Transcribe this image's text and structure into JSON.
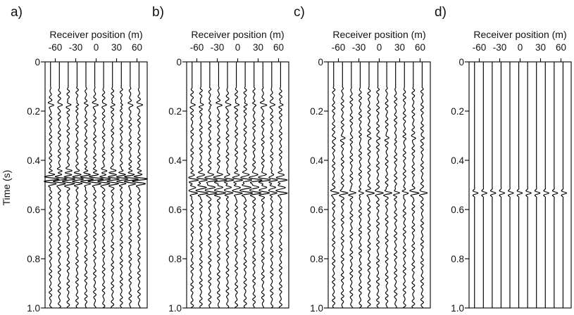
{
  "y_axis_label": "Time (s)",
  "chart_data": [
    {
      "type": "seismic-wiggle",
      "panel_label": "a)",
      "xlabel": "Receiver position (m)",
      "ylabel": "Time (s)",
      "x_ticks": [
        -60,
        -30,
        0,
        30,
        60
      ],
      "x_tick_labels": [
        "-60",
        "-30",
        "0",
        "30",
        "60"
      ],
      "y_ticks": [
        0,
        0.2,
        0.4,
        0.6,
        0.8,
        1.0
      ],
      "y_tick_labels": [
        "0",
        "0.2",
        "0.4",
        "0.6",
        "0.8",
        "1.0"
      ],
      "xlim": [
        -75,
        75
      ],
      "ylim": [
        0,
        1.0
      ],
      "y_inverted": true,
      "receiver_positions": [
        -67,
        -54,
        -41,
        -28,
        -15,
        -2,
        11,
        24,
        37,
        50,
        63
      ],
      "noise_onset_time": 0.1,
      "noise_amplitude": 0.25,
      "events": [
        {
          "time": 0.175,
          "amplitude": 0.55
        },
        {
          "time": 0.443,
          "amplitude": 0.6
        },
        {
          "time": 0.458,
          "amplitude": 0.8
        },
        {
          "time": 0.476,
          "amplitude": 1.55
        },
        {
          "time": 0.495,
          "amplitude": 1.2
        }
      ]
    },
    {
      "type": "seismic-wiggle",
      "panel_label": "b)",
      "xlabel": "Receiver position (m)",
      "ylabel": "",
      "x_ticks": [
        -60,
        -30,
        0,
        30,
        60
      ],
      "x_tick_labels": [
        "-60",
        "-30",
        "0",
        "30",
        "60"
      ],
      "y_ticks": [
        0,
        0.2,
        0.4,
        0.6,
        0.8,
        1.0
      ],
      "y_tick_labels": [
        "0",
        "0.2",
        "0.4",
        "0.6",
        "0.8",
        "1.0"
      ],
      "xlim": [
        -75,
        75
      ],
      "ylim": [
        0,
        1.0
      ],
      "y_inverted": true,
      "receiver_positions": [
        -67,
        -54,
        -41,
        -28,
        -15,
        -2,
        11,
        24,
        37,
        50,
        63
      ],
      "noise_onset_time": 0.1,
      "noise_amplitude": 0.26,
      "events": [
        {
          "time": 0.175,
          "amplitude": 0.6
        },
        {
          "time": 0.458,
          "amplitude": 0.7
        },
        {
          "time": 0.48,
          "amplitude": 1.55
        },
        {
          "time": 0.51,
          "amplitude": 1.0
        },
        {
          "time": 0.533,
          "amplitude": 1.45
        }
      ]
    },
    {
      "type": "seismic-wiggle",
      "panel_label": "c)",
      "xlabel": "Receiver position (m)",
      "ylabel": "",
      "x_ticks": [
        -60,
        -30,
        0,
        30,
        60
      ],
      "x_tick_labels": [
        "-60",
        "-30",
        "0",
        "30",
        "60"
      ],
      "y_ticks": [
        0,
        0.2,
        0.4,
        0.6,
        0.8,
        1.0
      ],
      "y_tick_labels": [
        "0",
        "0.2",
        "0.4",
        "0.6",
        "0.8",
        "1.0"
      ],
      "xlim": [
        -75,
        75
      ],
      "ylim": [
        0,
        1.0
      ],
      "y_inverted": true,
      "receiver_positions": [
        -67,
        -54,
        -41,
        -28,
        -15,
        -2,
        11,
        24,
        37,
        50,
        63
      ],
      "noise_onset_time": 0.1,
      "noise_amplitude": 0.26,
      "events": [
        {
          "time": 0.31,
          "amplitude": 0.35
        },
        {
          "time": 0.533,
          "amplitude": 1.05
        }
      ]
    },
    {
      "type": "seismic-wiggle",
      "panel_label": "d)",
      "xlabel": "Receiver position (m)",
      "ylabel": "",
      "x_ticks": [
        -60,
        -30,
        0,
        30,
        60
      ],
      "x_tick_labels": [
        "-60",
        "-30",
        "0",
        "30",
        "60"
      ],
      "y_ticks": [
        0,
        0.2,
        0.4,
        0.6,
        0.8,
        1.0
      ],
      "y_tick_labels": [
        "0",
        "0.2",
        "0.4",
        "0.6",
        "0.8",
        "1.0"
      ],
      "xlim": [
        -75,
        75
      ],
      "ylim": [
        0,
        1.0
      ],
      "y_inverted": true,
      "receiver_positions": [
        -67,
        -54,
        -41,
        -28,
        -15,
        -2,
        11,
        24,
        37,
        50,
        63
      ],
      "noise_onset_time": 0.1,
      "noise_amplitude": 0.0,
      "events": [
        {
          "time": 0.533,
          "amplitude": 0.8
        }
      ]
    }
  ]
}
